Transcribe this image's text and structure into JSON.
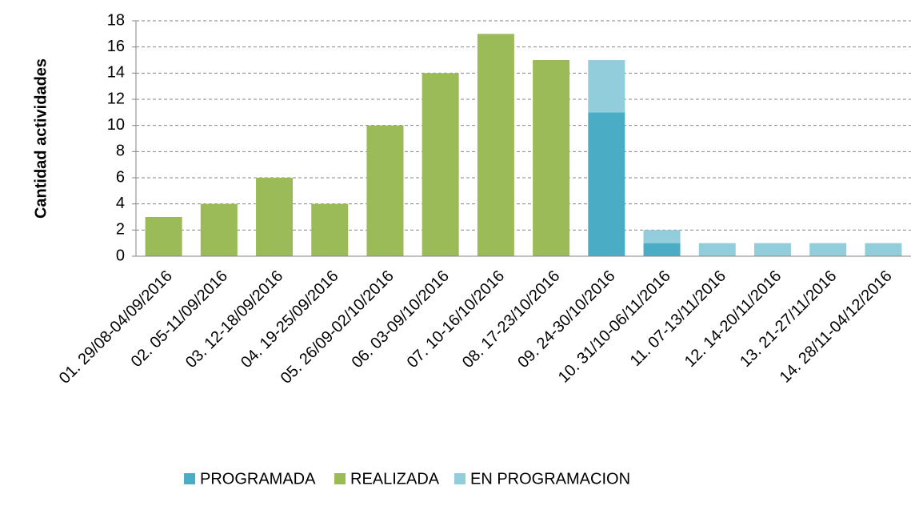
{
  "chart_data": {
    "type": "stacked_bar",
    "y_label": "Cantidad actividades",
    "categories": [
      "01. 29/08-04/09/2016",
      "02. 05-11/09/2016",
      "03. 12-18/09/2016",
      "04. 19-25/09/2016",
      "05. 26/09-02/10/2016",
      "06. 03-09/10/2016",
      "07. 10-16/10/2016",
      "08. 17-23/10/2016",
      "09. 24-30/10/2016",
      "10. 31/10-06/11/2016",
      "11. 07-13/11/2016",
      "12. 14-20/11/2016",
      "13. 21-27/11/2016",
      "14. 28/11-04/12/2016"
    ],
    "series": [
      {
        "name": "PROGRAMADA",
        "color": "#4bacc6",
        "values": [
          0,
          0,
          0,
          0,
          0,
          0,
          0,
          0,
          11,
          1,
          0,
          0,
          0,
          0
        ]
      },
      {
        "name": "REALIZADA",
        "color": "#9bbb59",
        "values": [
          3,
          4,
          6,
          4,
          10,
          14,
          17,
          15,
          0,
          0,
          0,
          0,
          0,
          0
        ]
      },
      {
        "name": "EN PROGRAMACION",
        "color": "#92cddc",
        "values": [
          0,
          0,
          0,
          0,
          0,
          0,
          0,
          0,
          4,
          1,
          1,
          1,
          1,
          1
        ]
      }
    ],
    "ylim": [
      0,
      18
    ],
    "yticks": [
      0,
      2,
      4,
      6,
      8,
      10,
      12,
      14,
      16,
      18
    ],
    "grid": true,
    "legend": "bottom"
  }
}
